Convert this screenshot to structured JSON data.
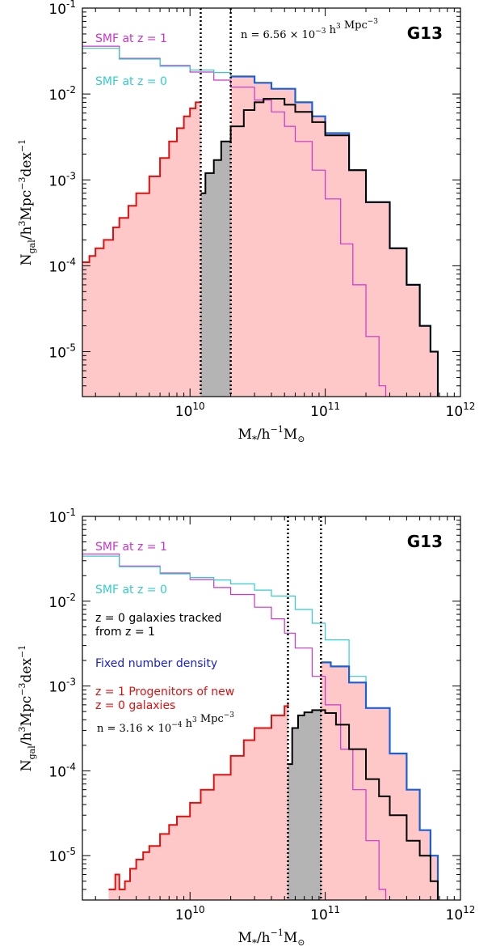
{
  "chart_data": [
    {
      "type": "line",
      "panel": "top",
      "xlabel": "M$_*$/h$^{-1}$M$_\\odot$",
      "ylabel": "N$_{\\rm gal}$/h$^3$Mpc$^{-3}$dex$^{-1}$",
      "x_log": true,
      "y_log": true,
      "xlim": [
        1600000000.0,
        1000000000000.0
      ],
      "ylim": [
        3e-06,
        0.1
      ],
      "x_ticks": [
        10000000000.0,
        100000000000.0,
        1000000000000.0
      ],
      "x_tick_labels": [
        "10^10",
        "10^11",
        "10^12"
      ],
      "y_ticks": [
        1e-05,
        0.0001,
        0.001,
        0.01,
        0.1
      ],
      "y_tick_labels": [
        "10^-5",
        "10^-4",
        "10^-3",
        "10^-2",
        "10^-1"
      ],
      "simulation_label": "G13",
      "number_density_label": "n = 6.56 × 10^-3 h^3 Mpc^-3",
      "vlines": [
        12000000000.0,
        20000000000.0
      ],
      "series": [
        {
          "name": "SMF at z = 1",
          "color": "#cc33cc",
          "x": [
            1600000000.0,
            3000000000.0,
            6000000000.0,
            10000000000.0,
            15000000000.0,
            20000000000.0,
            30000000000.0,
            40000000000.0,
            50000000000.0,
            60000000000.0,
            80000000000.0,
            100000000000.0,
            130000000000.0,
            160000000000.0,
            200000000000.0,
            250000000000.0,
            280000000000.0
          ],
          "y": [
            0.036,
            0.026,
            0.0215,
            0.018,
            0.0145,
            0.012,
            0.0085,
            0.0062,
            0.0042,
            0.0028,
            0.0013,
            0.0006,
            0.00018,
            6e-05,
            1.5e-05,
            4e-06,
            3e-06
          ]
        },
        {
          "name": "SMF at z = 0",
          "color": "#33cccc",
          "x": [
            1600000000.0,
            3000000000.0,
            6000000000.0,
            10000000000.0,
            15000000000.0,
            20000000000.0,
            30000000000.0,
            40000000000.0,
            60000000000.0,
            80000000000.0,
            100000000000.0,
            150000000000.0,
            200000000000.0,
            300000000000.0,
            400000000000.0,
            500000000000.0,
            600000000000.0,
            680000000000.0
          ],
          "y": [
            0.034,
            0.0255,
            0.021,
            0.019,
            0.0178,
            0.016,
            0.0135,
            0.0115,
            0.008,
            0.0055,
            0.0035,
            0.0013,
            0.00055,
            0.00016,
            6e-05,
            2e-05,
            1e-05,
            3e-06
          ]
        },
        {
          "name": "Fixed number density",
          "color": "#1a5fd8",
          "x": [
            20000000000.0,
            30000000000.0,
            40000000000.0,
            60000000000.0,
            80000000000.0,
            100000000000.0,
            150000000000.0,
            200000000000.0,
            300000000000.0,
            400000000000.0,
            500000000000.0,
            600000000000.0,
            680000000000.0
          ],
          "y": [
            0.016,
            0.0135,
            0.0115,
            0.008,
            0.0055,
            0.0035,
            0.0013,
            0.00055,
            0.00016,
            6e-05,
            2e-05,
            1e-05,
            3e-06
          ]
        },
        {
          "name": "z = 0 galaxies tracked from z = 1",
          "color": "#000000",
          "x": [
            12000000000.0,
            13000000000.0,
            15000000000.0,
            17000000000.0,
            20000000000.0,
            25000000000.0,
            30000000000.0,
            35000000000.0,
            40000000000.0,
            50000000000.0,
            60000000000.0,
            80000000000.0,
            100000000000.0,
            150000000000.0,
            200000000000.0,
            300000000000.0,
            400000000000.0,
            500000000000.0,
            600000000000.0,
            680000000000.0
          ],
          "y": [
            0.0007,
            0.0012,
            0.0017,
            0.0028,
            0.0042,
            0.0065,
            0.008,
            0.0088,
            0.0088,
            0.0075,
            0.0062,
            0.0047,
            0.0033,
            0.0013,
            0.00055,
            0.00016,
            6e-05,
            2e-05,
            1e-05,
            3e-06
          ]
        },
        {
          "name": "z = 1 Progenitors of new z = 0 galaxies",
          "color": "#e01010",
          "x": [
            1600000000.0,
            1800000000.0,
            2000000000.0,
            2300000000.0,
            2700000000.0,
            3000000000.0,
            3500000000.0,
            4000000000.0,
            5000000000.0,
            6000000000.0,
            7000000000.0,
            8000000000.0,
            9000000000.0,
            10000000000.0,
            11000000000.0,
            12000000000.0
          ],
          "y": [
            0.00011,
            0.00013,
            0.00016,
            0.0002,
            0.00028,
            0.00036,
            0.0005,
            0.0007,
            0.0011,
            0.0018,
            0.0028,
            0.004,
            0.0055,
            0.0068,
            0.008,
            0.0082
          ]
        }
      ]
    },
    {
      "type": "line",
      "panel": "bottom",
      "xlabel": "M$_*$/h$^{-1}$M$_\\odot$",
      "ylabel": "N$_{\\rm gal}$/h$^3$Mpc$^{-3}$dex$^{-1}$",
      "x_log": true,
      "y_log": true,
      "xlim": [
        1600000000.0,
        1000000000000.0
      ],
      "ylim": [
        3e-06,
        0.1
      ],
      "x_ticks": [
        10000000000.0,
        100000000000.0,
        1000000000000.0
      ],
      "x_tick_labels": [
        "10^10",
        "10^11",
        "10^12"
      ],
      "y_ticks": [
        1e-05,
        0.0001,
        0.001,
        0.01,
        0.1
      ],
      "y_tick_labels": [
        "10^-5",
        "10^-4",
        "10^-3",
        "10^-2",
        "10^-1"
      ],
      "simulation_label": "G13",
      "number_density_label": "n = 3.16 × 10^-4 h^3 Mpc^-3",
      "vlines": [
        53000000000.0,
        93000000000.0
      ],
      "legend": [
        "SMF at z = 1",
        "SMF at z = 0",
        "z = 0 galaxies tracked from z = 1",
        "Fixed number density",
        "z = 1 Progenitors of new z = 0 galaxies"
      ],
      "series": [
        {
          "name": "SMF at z = 1",
          "color": "#cc33cc",
          "x": [
            1600000000.0,
            3000000000.0,
            6000000000.0,
            10000000000.0,
            15000000000.0,
            20000000000.0,
            30000000000.0,
            40000000000.0,
            50000000000.0,
            60000000000.0,
            80000000000.0,
            100000000000.0,
            130000000000.0,
            160000000000.0,
            200000000000.0,
            250000000000.0,
            280000000000.0
          ],
          "y": [
            0.036,
            0.026,
            0.0215,
            0.018,
            0.0145,
            0.012,
            0.0085,
            0.0062,
            0.0042,
            0.0028,
            0.0013,
            0.0006,
            0.00018,
            6e-05,
            1.5e-05,
            4e-06,
            3e-06
          ]
        },
        {
          "name": "SMF at z = 0",
          "color": "#33cccc",
          "x": [
            1600000000.0,
            3000000000.0,
            6000000000.0,
            10000000000.0,
            15000000000.0,
            20000000000.0,
            30000000000.0,
            40000000000.0,
            60000000000.0,
            80000000000.0,
            100000000000.0,
            150000000000.0,
            200000000000.0,
            300000000000.0,
            400000000000.0,
            500000000000.0,
            600000000000.0,
            680000000000.0
          ],
          "y": [
            0.034,
            0.0255,
            0.021,
            0.019,
            0.0178,
            0.016,
            0.0135,
            0.0115,
            0.008,
            0.0055,
            0.0035,
            0.0013,
            0.00055,
            0.00016,
            6e-05,
            2e-05,
            1e-05,
            3e-06
          ]
        },
        {
          "name": "Fixed number density",
          "color": "#1a5fd8",
          "x": [
            93000000000.0,
            110000000000.0,
            150000000000.0,
            200000000000.0,
            300000000000.0,
            400000000000.0,
            500000000000.0,
            600000000000.0,
            680000000000.0
          ],
          "y": [
            0.0019,
            0.0017,
            0.0011,
            0.00055,
            0.00016,
            6e-05,
            2e-05,
            1e-05,
            3e-06
          ]
        },
        {
          "name": "z = 0 galaxies tracked from z = 1",
          "color": "#000000",
          "x": [
            53000000000.0,
            57000000000.0,
            63000000000.0,
            70000000000.0,
            80000000000.0,
            90000000000.0,
            100000000000.0,
            120000000000.0,
            150000000000.0,
            200000000000.0,
            250000000000.0,
            300000000000.0,
            400000000000.0,
            500000000000.0,
            600000000000.0,
            680000000000.0
          ],
          "y": [
            0.00012,
            0.00032,
            0.00045,
            0.00049,
            0.00052,
            0.00052,
            0.00048,
            0.00035,
            0.00018,
            8e-05,
            5e-05,
            3e-05,
            1.5e-05,
            1e-05,
            5e-06,
            3e-06
          ]
        },
        {
          "name": "z = 1 Progenitors of new z = 0 galaxies",
          "color": "#e01010",
          "x": [
            2500000000.0,
            2800000000.0,
            3000000000.0,
            3300000000.0,
            3600000000.0,
            4000000000.0,
            4500000000.0,
            5000000000.0,
            6000000000.0,
            7000000000.0,
            8000000000.0,
            10000000000.0,
            12000000000.0,
            15000000000.0,
            20000000000.0,
            25000000000.0,
            30000000000.0,
            40000000000.0,
            50000000000.0,
            53000000000.0
          ],
          "y": [
            4e-06,
            6e-06,
            4e-06,
            5e-06,
            7e-06,
            9e-06,
            1.1e-05,
            1.3e-05,
            1.8e-05,
            2.3e-05,
            2.9e-05,
            4.2e-05,
            6e-05,
            9e-05,
            0.00015,
            0.00023,
            0.00032,
            0.00045,
            0.00058,
            0.00062
          ]
        }
      ]
    }
  ]
}
